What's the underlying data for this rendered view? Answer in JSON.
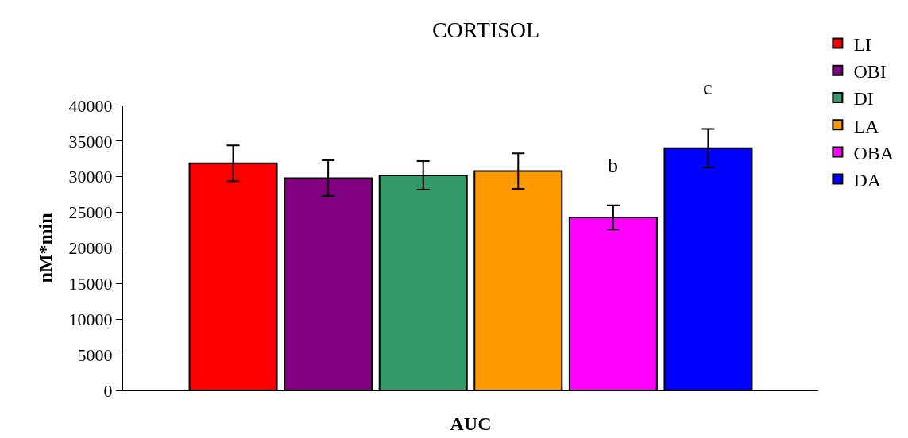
{
  "chart_data": {
    "type": "bar",
    "title": "CORTISOL",
    "xlabel": "AUC",
    "ylabel": "nM*min",
    "categories": [
      null
    ],
    "series": [
      {
        "name": "LI",
        "color": "#ff0000",
        "values": [
          31900
        ],
        "errors": [
          2500
        ]
      },
      {
        "name": "OBI",
        "color": "#800080",
        "values": [
          29800
        ],
        "errors": [
          2500
        ]
      },
      {
        "name": "DI",
        "color": "#339966",
        "values": [
          30200
        ],
        "errors": [
          2000
        ]
      },
      {
        "name": "LA",
        "color": "#ff9900",
        "values": [
          30800
        ],
        "errors": [
          2500
        ]
      },
      {
        "name": "OBA",
        "color": "#ff00ff",
        "values": [
          24300
        ],
        "errors": [
          1700
        ]
      },
      {
        "name": "DA",
        "color": "#0000ff",
        "values": [
          34000
        ],
        "errors": [
          2700
        ]
      }
    ],
    "annotations": [
      "b",
      "c"
    ],
    "ylim": [
      0,
      40000
    ],
    "yticks": [
      0,
      5000,
      10000,
      15000,
      20000,
      25000,
      30000,
      35000,
      40000
    ],
    "grid": false,
    "legend": "top right"
  }
}
